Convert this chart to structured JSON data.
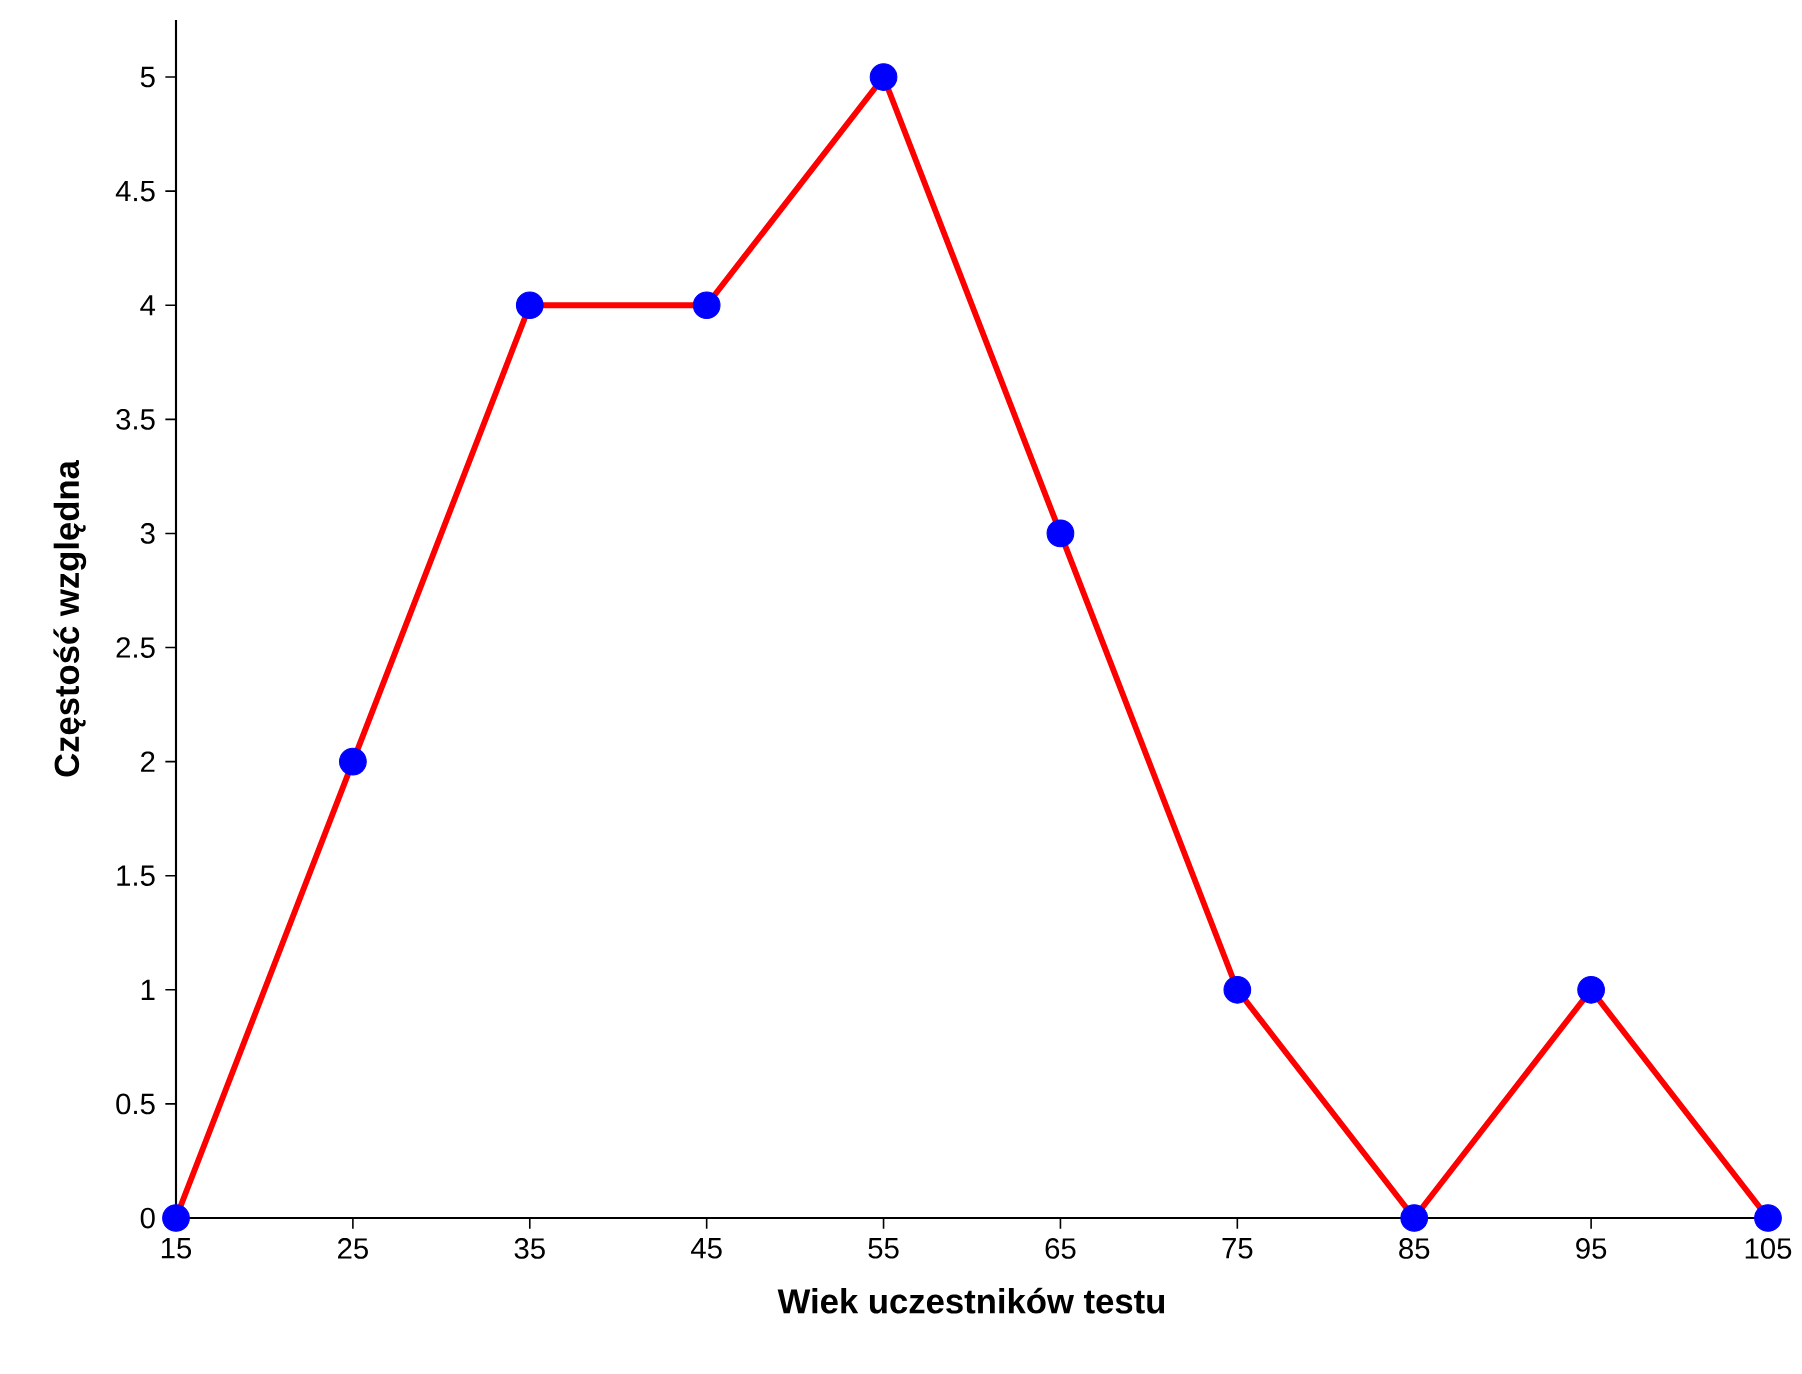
{
  "chart_data": {
    "type": "line",
    "xlabel": "Wiek uczestników testu",
    "ylabel": "Częstość względna",
    "x": [
      15,
      25,
      35,
      45,
      55,
      65,
      75,
      85,
      95,
      105
    ],
    "series": [
      {
        "color": "#ff0000",
        "colors": [
          "#0000ff",
          "#0000ff",
          "#0000ff",
          "#0000ff",
          "#0000ff",
          "#0000ff",
          "#0000ff",
          "#0000ff",
          "#0000ff",
          "#0000ff"
        ],
        "values": [
          0,
          2,
          4,
          4,
          5,
          3,
          1,
          0,
          1,
          0
        ]
      }
    ],
    "xlim": [
      15,
      105
    ],
    "ylim": [
      0,
      5.25
    ],
    "xticks": [
      15,
      25,
      35,
      45,
      55,
      65,
      75,
      85,
      95,
      105
    ],
    "yticks": [
      0,
      0.5,
      1,
      1.5,
      2,
      2.5,
      3,
      3.5,
      4,
      4.5,
      5
    ],
    "marker": "circle",
    "line_style": "solid"
  }
}
